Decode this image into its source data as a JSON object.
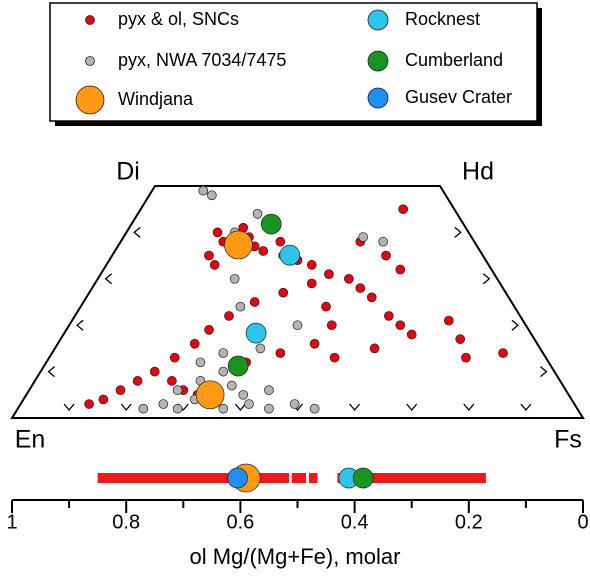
{
  "chart_data": [
    {
      "type": "quadrilateral",
      "corner_labels": {
        "en": "En",
        "fs": "Fs",
        "di": "Di",
        "hd": "Hd"
      },
      "wo_ticks": [
        10,
        20,
        30,
        40
      ],
      "fs_ticks": [
        10,
        20,
        30,
        40,
        50,
        60,
        70,
        80,
        90
      ],
      "series": [
        {
          "name": "pyx & ol, SNCs",
          "color": "#e8000b",
          "fs": [
            16,
            18,
            17,
            19,
            20,
            22,
            24,
            26,
            28,
            30,
            33,
            36,
            40,
            44,
            47,
            50,
            55,
            58,
            61,
            52,
            48,
            42,
            38,
            34,
            30,
            27,
            25,
            24,
            22,
            20,
            18,
            16,
            14,
            12,
            24,
            27,
            30,
            35,
            40,
            45,
            50,
            46,
            56,
            43,
            46,
            79,
            70,
            66,
            73
          ],
          "wo": [
            40,
            38,
            35,
            33,
            41,
            39,
            37,
            36,
            38,
            35,
            34,
            33,
            31,
            30,
            28,
            26,
            22,
            20,
            18,
            32,
            35,
            38,
            29,
            27,
            25,
            22,
            19,
            16,
            13,
            10,
            8,
            6,
            4,
            3,
            8,
            6,
            5,
            12,
            14,
            16,
            13,
            20,
            15,
            24,
            45,
            14,
            17,
            21,
            13
          ]
        },
        {
          "name": "pyx, NWA 7034/7475",
          "color": "#b4b4b4",
          "fs": [
            22,
            25,
            28,
            30,
            33,
            36,
            40,
            44,
            48,
            52,
            26,
            29,
            32,
            35,
            38,
            42,
            30,
            33,
            28,
            24,
            22,
            19,
            9,
            11,
            21,
            42,
            46,
            40,
            36,
            27
          ],
          "wo": [
            2,
            3,
            2,
            4,
            3,
            2,
            3,
            2,
            3,
            2,
            6,
            8,
            10,
            7,
            5,
            6,
            14,
            18,
            24,
            30,
            36,
            40,
            49,
            48,
            44,
            39,
            38,
            20,
            15,
            12
          ]
        },
        {
          "name": "Windjana",
          "color": "#ff9a12",
          "fs": [
            21,
            32.2
          ],
          "wo": [
            37.3,
            5
          ]
        },
        {
          "name": "Rocknest",
          "color": "#2cc6ea",
          "fs": [
            31.1,
            33.6
          ],
          "wo": [
            35.1,
            18.3
          ]
        },
        {
          "name": "Cumberland",
          "color": "#17951f",
          "fs": [
            24.5,
            34
          ],
          "wo": [
            41.8,
            11.2
          ]
        }
      ]
    },
    {
      "type": "strip",
      "xlabel": "ol Mg/(Mg+Fe), molar",
      "xlim": [
        1,
        0
      ],
      "xticks": [
        1,
        0.8,
        0.6,
        0.4,
        0.2,
        0
      ],
      "xminorticks": [
        0.9,
        0.7,
        0.5,
        0.3,
        0.1
      ],
      "ranges": {
        "color": "#f21818",
        "values": [
          [
            0.85,
            0.515
          ],
          [
            0.51,
            0.485
          ],
          [
            0.48,
            0.465
          ],
          [
            0.43,
            0.17
          ]
        ]
      },
      "series": [
        {
          "name": "Windjana",
          "color": "#ff9a12",
          "values": [
            0.59
          ]
        },
        {
          "name": "Gusev Crater",
          "color": "#1e8ff2",
          "values": [
            0.605
          ]
        },
        {
          "name": "Rocknest",
          "color": "#2cc6ea",
          "values": [
            0.41
          ]
        },
        {
          "name": "Cumberland",
          "color": "#17951f",
          "values": [
            0.385
          ]
        }
      ]
    }
  ]
}
